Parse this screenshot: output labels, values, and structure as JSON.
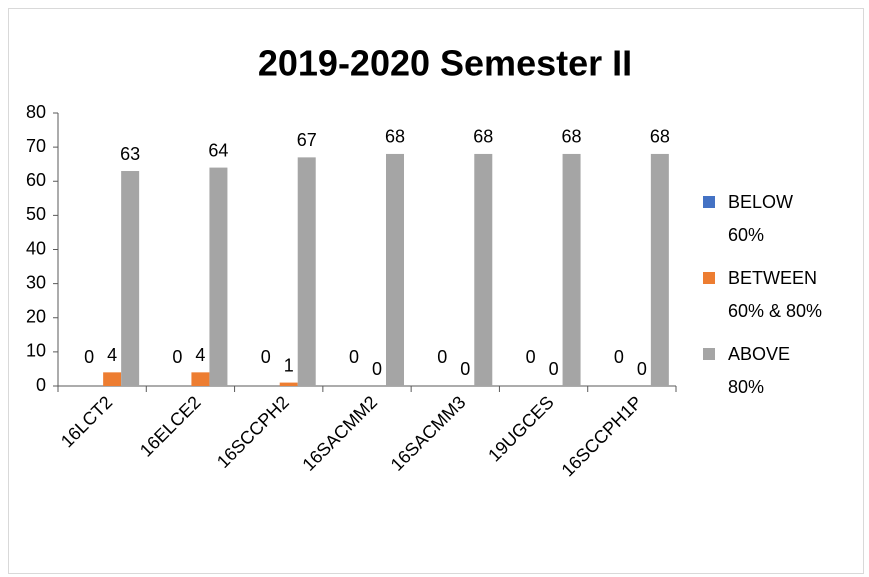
{
  "chart_data": {
    "type": "bar",
    "title": "2019-2020 Semester II",
    "categories": [
      "16LCT2",
      "16ELCE2",
      "16SCCPH2",
      "16SACMM2",
      "16SACMM3",
      "19UGCES",
      "16SCCPH1P"
    ],
    "series": [
      {
        "name": "BELOW 60%",
        "color": "#4472c4",
        "values": [
          0,
          0,
          0,
          0,
          0,
          0,
          0
        ]
      },
      {
        "name": "BETWEEN 60% & 80%",
        "color": "#ed7d31",
        "values": [
          4,
          4,
          1,
          0,
          0,
          0,
          0
        ]
      },
      {
        "name": "ABOVE 80%",
        "color": "#a5a5a5",
        "values": [
          63,
          64,
          67,
          68,
          68,
          68,
          68
        ]
      }
    ],
    "ylim": [
      0,
      80
    ],
    "yticks": [
      0,
      10,
      20,
      30,
      40,
      50,
      60,
      70,
      80
    ],
    "grid": false,
    "legend": "right"
  }
}
